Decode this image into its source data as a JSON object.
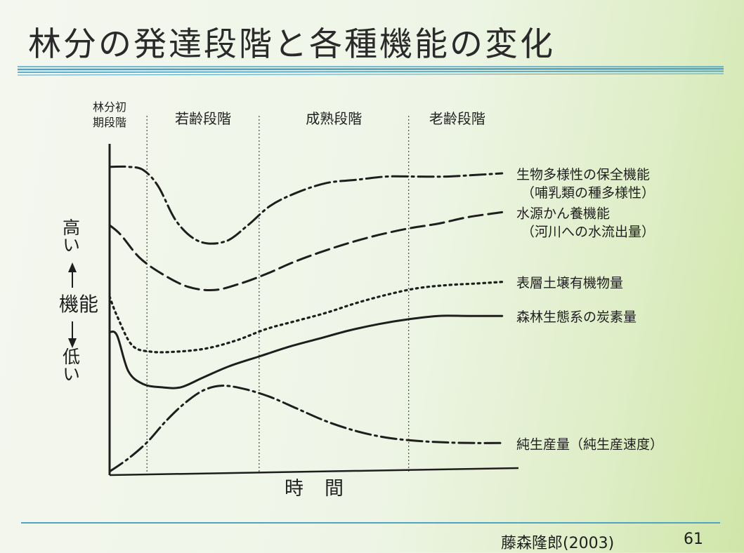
{
  "slide": {
    "title": "林分の発達段階と各種機能の変化",
    "citation": "藤森隆郎(2003)",
    "page_number": "61",
    "accent_color": "#4fa3c4"
  },
  "chart_data": {
    "type": "line",
    "xlabel": "時間",
    "ylabel": "機能",
    "y_high_label": "高い",
    "y_low_label": "低い",
    "stages": [
      {
        "label": "林分初期段階",
        "lines": [
          "林分初",
          "期段階"
        ],
        "start": 0,
        "end": 1
      },
      {
        "label": "若齢段階",
        "start": 1,
        "end": 4
      },
      {
        "label": "成熟段階",
        "start": 4,
        "end": 8
      },
      {
        "label": "老齢段階",
        "start": 8,
        "end": 10.6
      }
    ],
    "xlim": [
      0,
      10.6
    ],
    "ylim": [
      0,
      10
    ],
    "grid": false,
    "series": [
      {
        "name": "生物多様性の保全機能",
        "note": "（哺乳類の種多様性）",
        "style": "dashdot",
        "x": [
          0,
          0.5,
          0.9,
          1.3,
          1.8,
          2.4,
          3.1,
          3.7,
          4.3,
          5.0,
          5.8,
          6.6,
          7.4,
          8.2,
          9.0,
          9.8,
          10.5
        ],
        "y": [
          9.4,
          9.4,
          9.3,
          8.8,
          7.7,
          7.1,
          7.1,
          7.6,
          8.2,
          8.6,
          8.9,
          9.0,
          9.1,
          9.1,
          9.1,
          9.15,
          9.2
        ]
      },
      {
        "name": "水源かん養機能",
        "note": "（河川への水流出量）",
        "style": "dashed",
        "x": [
          0,
          0.3,
          0.8,
          1.4,
          2.1,
          2.8,
          3.5,
          4.2,
          4.9,
          5.6,
          6.4,
          7.2,
          8.0,
          8.8,
          9.6,
          10.5
        ],
        "y": [
          7.6,
          7.3,
          6.6,
          6.1,
          5.7,
          5.6,
          5.8,
          6.1,
          6.45,
          6.75,
          7.05,
          7.3,
          7.5,
          7.65,
          7.85,
          8.0
        ]
      },
      {
        "name": "表層土壌有機物量",
        "style": "dotted",
        "x": [
          0,
          0.2,
          0.6,
          1.1,
          1.8,
          2.6,
          3.4,
          4.2,
          5.0,
          5.8,
          6.6,
          7.4,
          8.2,
          9.0,
          9.8,
          10.5
        ],
        "y": [
          5.4,
          4.8,
          3.9,
          3.7,
          3.7,
          3.8,
          4.05,
          4.4,
          4.65,
          4.9,
          5.2,
          5.45,
          5.65,
          5.75,
          5.8,
          5.85
        ]
      },
      {
        "name": "森林生態系の炭素量",
        "style": "solid",
        "x": [
          0,
          0.2,
          0.5,
          0.9,
          1.4,
          1.9,
          2.5,
          3.2,
          4.0,
          4.8,
          5.6,
          6.4,
          7.2,
          8.0,
          8.8,
          9.6,
          10.5
        ],
        "y": [
          4.3,
          4.2,
          3.1,
          2.7,
          2.6,
          2.6,
          2.9,
          3.25,
          3.55,
          3.85,
          4.1,
          4.35,
          4.55,
          4.7,
          4.8,
          4.8,
          4.8
        ]
      },
      {
        "name": "純生産量",
        "note": "（純生産速度）",
        "style": "dashdot",
        "x": [
          0,
          0.5,
          1.0,
          1.5,
          2.0,
          2.5,
          3.0,
          3.6,
          4.3,
          5.0,
          5.8,
          6.6,
          7.4,
          8.2,
          9.0,
          9.8,
          10.5
        ],
        "y": [
          0.0,
          0.4,
          0.9,
          1.55,
          2.1,
          2.5,
          2.65,
          2.55,
          2.3,
          1.95,
          1.55,
          1.25,
          1.05,
          0.95,
          0.9,
          0.88,
          0.88
        ]
      }
    ]
  }
}
